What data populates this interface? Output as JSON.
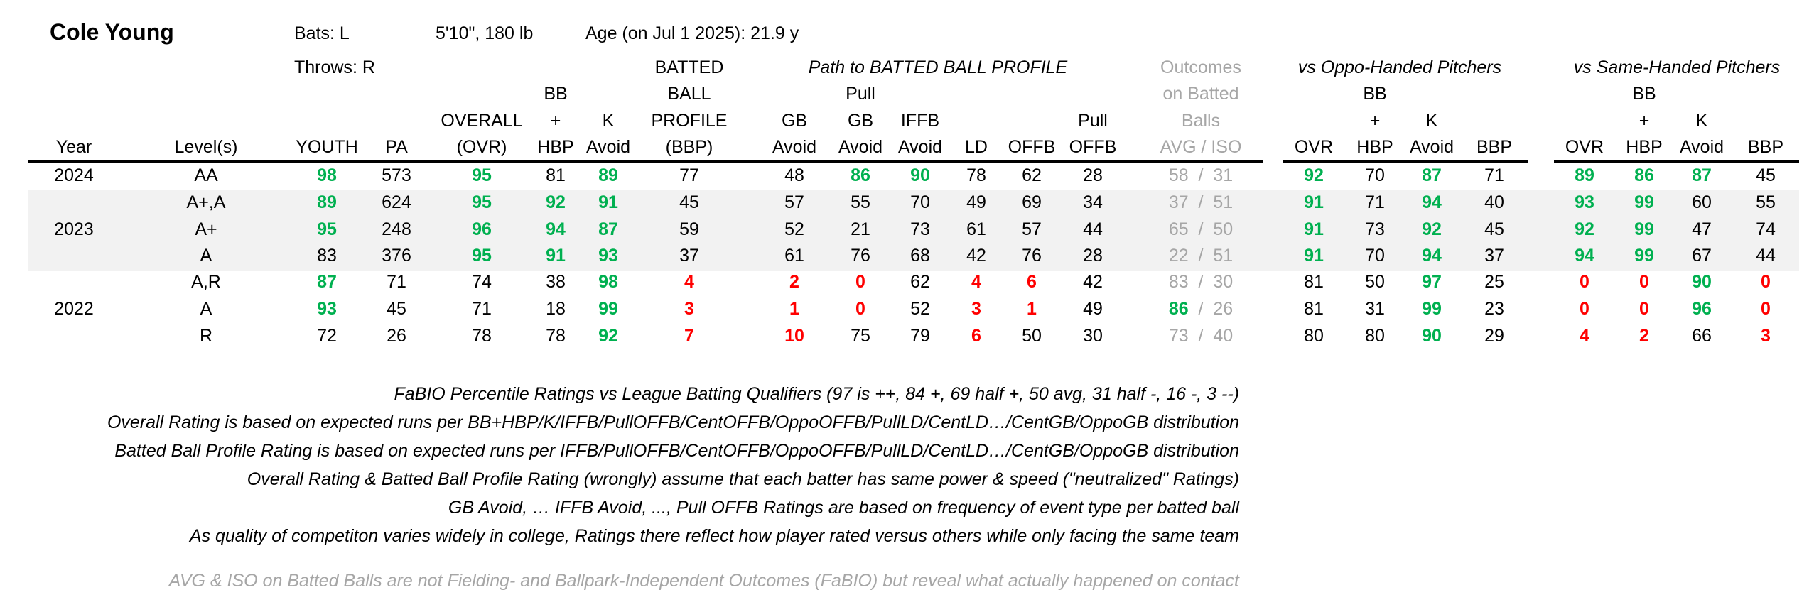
{
  "player": {
    "name": "Cole Young",
    "bats": "Bats: L",
    "throws": "Throws: R",
    "size": "5'10\", 180 lb",
    "age": "Age (on Jul 1 2025): 21.9 y"
  },
  "group_headers": {
    "path": "Path to BATTED BALL PROFILE",
    "outcomes": [
      "Outcomes",
      "on Batted",
      "Balls"
    ],
    "oppo": "vs Oppo-Handed Pitchers",
    "same": "vs Same-Handed Pitchers"
  },
  "columns": [
    {
      "key": "year",
      "lines": [
        "Year"
      ]
    },
    {
      "key": "level",
      "lines": [
        "Level(s)"
      ]
    },
    {
      "key": "youth",
      "lines": [
        "YOUTH"
      ]
    },
    {
      "key": "pa",
      "lines": [
        "PA"
      ]
    },
    {
      "key": "ovr",
      "lines": [
        "OVERALL",
        "(OVR)"
      ]
    },
    {
      "key": "bbhbp",
      "lines": [
        "BB",
        "+",
        "HBP"
      ]
    },
    {
      "key": "kavoid",
      "lines": [
        "K",
        "Avoid"
      ]
    },
    {
      "key": "bbp",
      "lines": [
        "BATTED",
        "BALL",
        "PROFILE",
        "(BBP)"
      ]
    },
    {
      "key": "gbavoid",
      "lines": [
        "GB",
        "Avoid"
      ]
    },
    {
      "key": "pullgb",
      "lines": [
        "Pull",
        "GB",
        "Avoid"
      ]
    },
    {
      "key": "iffb",
      "lines": [
        "IFFB",
        "Avoid"
      ]
    },
    {
      "key": "ld",
      "lines": [
        "LD"
      ]
    },
    {
      "key": "offb",
      "lines": [
        "OFFB"
      ]
    },
    {
      "key": "pulloffb",
      "lines": [
        "Pull",
        "OFFB"
      ]
    },
    {
      "key": "avgiso",
      "lines": [
        "AVG  /  ISO"
      ]
    },
    {
      "key": "o_ovr",
      "lines": [
        "OVR"
      ]
    },
    {
      "key": "o_bbhbp",
      "lines": [
        "BB",
        "+",
        "HBP"
      ]
    },
    {
      "key": "o_kavoid",
      "lines": [
        "K",
        "Avoid"
      ]
    },
    {
      "key": "o_bbp",
      "lines": [
        "BBP"
      ]
    },
    {
      "key": "s_ovr",
      "lines": [
        "OVR"
      ]
    },
    {
      "key": "s_bbhbp",
      "lines": [
        "BB",
        "+",
        "HBP"
      ]
    },
    {
      "key": "s_kavoid",
      "lines": [
        "K",
        "Avoid"
      ]
    },
    {
      "key": "s_bbp",
      "lines": [
        "BBP"
      ]
    }
  ],
  "rows": [
    {
      "year": "2024",
      "level": "AA",
      "youth": "98",
      "pa": "573",
      "ovr": "95",
      "bbhbp": "81",
      "kavoid": "89",
      "bbp": "77",
      "gbavoid": "48",
      "pullgb": "86",
      "iffb": "90",
      "ld": "78",
      "offb": "62",
      "pulloffb": "28",
      "avg": "58",
      "iso": "31",
      "o_ovr": "92",
      "o_bbhbp": "70",
      "o_kavoid": "87",
      "o_bbp": "71",
      "s_ovr": "89",
      "s_bbhbp": "86",
      "s_kavoid": "87",
      "s_bbp": "45"
    },
    {
      "year": "",
      "level": "A+,A",
      "youth": "89",
      "pa": "624",
      "ovr": "95",
      "bbhbp": "92",
      "kavoid": "91",
      "bbp": "45",
      "gbavoid": "57",
      "pullgb": "55",
      "iffb": "70",
      "ld": "49",
      "offb": "69",
      "pulloffb": "34",
      "avg": "37",
      "iso": "51",
      "o_ovr": "91",
      "o_bbhbp": "71",
      "o_kavoid": "94",
      "o_bbp": "40",
      "s_ovr": "93",
      "s_bbhbp": "99",
      "s_kavoid": "60",
      "s_bbp": "55"
    },
    {
      "year": "2023",
      "level": "A+",
      "youth": "95",
      "pa": "248",
      "ovr": "96",
      "bbhbp": "94",
      "kavoid": "87",
      "bbp": "59",
      "gbavoid": "52",
      "pullgb": "21",
      "iffb": "73",
      "ld": "61",
      "offb": "57",
      "pulloffb": "44",
      "avg": "65",
      "iso": "50",
      "o_ovr": "91",
      "o_bbhbp": "73",
      "o_kavoid": "92",
      "o_bbp": "45",
      "s_ovr": "92",
      "s_bbhbp": "99",
      "s_kavoid": "47",
      "s_bbp": "74"
    },
    {
      "year": "",
      "level": "A",
      "youth": "83",
      "pa": "376",
      "ovr": "95",
      "bbhbp": "91",
      "kavoid": "93",
      "bbp": "37",
      "gbavoid": "61",
      "pullgb": "76",
      "iffb": "68",
      "ld": "42",
      "offb": "76",
      "pulloffb": "28",
      "avg": "22",
      "iso": "51",
      "o_ovr": "91",
      "o_bbhbp": "70",
      "o_kavoid": "94",
      "o_bbp": "37",
      "s_ovr": "94",
      "s_bbhbp": "99",
      "s_kavoid": "67",
      "s_bbp": "44"
    },
    {
      "year": "",
      "level": "A,R",
      "youth": "87",
      "pa": "71",
      "ovr": "74",
      "bbhbp": "38",
      "kavoid": "98",
      "bbp": "4",
      "gbavoid": "2",
      "pullgb": "0",
      "iffb": "62",
      "ld": "4",
      "offb": "6",
      "pulloffb": "42",
      "avg": "83",
      "iso": "30",
      "o_ovr": "81",
      "o_bbhbp": "50",
      "o_kavoid": "97",
      "o_bbp": "25",
      "s_ovr": "0",
      "s_bbhbp": "0",
      "s_kavoid": "90",
      "s_bbp": "0"
    },
    {
      "year": "2022",
      "level": "A",
      "youth": "93",
      "pa": "45",
      "ovr": "71",
      "bbhbp": "18",
      "kavoid": "99",
      "bbp": "3",
      "gbavoid": "1",
      "pullgb": "0",
      "iffb": "52",
      "ld": "3",
      "offb": "1",
      "pulloffb": "49",
      "avg": "86",
      "iso": "26",
      "o_ovr": "81",
      "o_bbhbp": "31",
      "o_kavoid": "99",
      "o_bbp": "23",
      "s_ovr": "0",
      "s_bbhbp": "0",
      "s_kavoid": "96",
      "s_bbp": "0"
    },
    {
      "year": "",
      "level": "R",
      "youth": "72",
      "pa": "26",
      "ovr": "78",
      "bbhbp": "78",
      "kavoid": "92",
      "bbp": "7",
      "gbavoid": "10",
      "pullgb": "75",
      "iffb": "79",
      "ld": "6",
      "offb": "50",
      "pulloffb": "30",
      "avg": "73",
      "iso": "40",
      "o_ovr": "80",
      "o_bbhbp": "80",
      "o_kavoid": "90",
      "o_bbp": "29",
      "s_ovr": "4",
      "s_bbhbp": "2",
      "s_kavoid": "66",
      "s_bbp": "3"
    }
  ],
  "notes": [
    "FaBIO Percentile Ratings vs League Batting Qualifiers (97 is ++, 84 +, 69 half +, 50 avg, 31 half -, 16 -, 3 --)",
    "Overall Rating is based on expected runs per BB+HBP/K/IFFB/PullOFFB/CentOFFB/OppoOFFB/PullLD/CentLD…/CentGB/OppoGB distribution",
    "Batted Ball Profile Rating is based on expected runs per IFFB/PullOFFB/CentOFFB/OppoOFFB/PullLD/CentLD…/CentGB/OppoGB distribution",
    "Overall Rating & Batted Ball Profile Rating (wrongly) assume that each batter has same power & speed (\"neutralized\" Ratings)",
    "GB Avoid, … IFFB Avoid, ..., Pull OFFB Ratings are based on frequency of event type per batted ball",
    "As quality of competiton varies widely in college, Ratings there reflect how player rated versus others while only facing the same team"
  ],
  "footnote": "AVG & ISO on Batted Balls are not Fielding- and Ballpark-Independent Outcomes (FaBIO) but reveal what actually happened on contact",
  "colors": {
    "high": "#00b050",
    "low": "#ff0000",
    "muted": "#a6a6a6",
    "band": "#f2f2f2"
  }
}
